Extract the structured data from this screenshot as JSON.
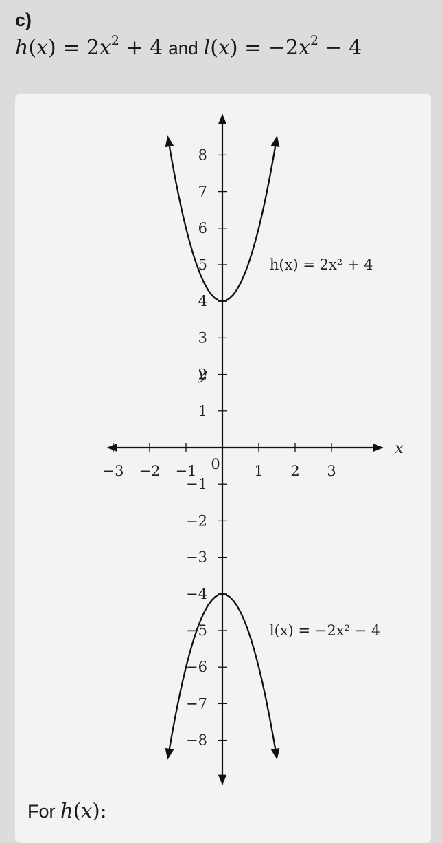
{
  "part_label": "c)",
  "heading": {
    "h_def": [
      "h",
      "(",
      "x",
      ") = 2",
      "x",
      "2",
      " + 4"
    ],
    "connector": "and",
    "l_def": [
      "l",
      "(",
      "x",
      ") = −2",
      "x",
      "2",
      " − 4"
    ]
  },
  "chart_data": {
    "type": "line",
    "xlabel": "x",
    "ylabel": "y",
    "xlim": [
      -3.0,
      4.4
    ],
    "ylim": [
      -9.2,
      9.1
    ],
    "x_ticks": [
      -3,
      -2,
      -1,
      1,
      2,
      3
    ],
    "x_tick_labels": [
      "−3",
      "−2",
      "−1",
      "1",
      "2",
      "3"
    ],
    "y_ticks": [
      8,
      7,
      6,
      5,
      4,
      3,
      2,
      1,
      -1,
      -2,
      -3,
      -4,
      -5,
      -6,
      -7,
      -8
    ],
    "y_tick_labels": [
      "8",
      "7",
      "6",
      "5",
      "4",
      "3",
      "2",
      "1",
      "−1",
      "−2",
      "−3",
      "−4",
      "−5",
      "−6",
      "−7",
      "−8"
    ],
    "origin_label": "0",
    "series": [
      {
        "name": "h(x) = 2x² + 4",
        "label_at": [
          1.3,
          5
        ],
        "x": [
          -1.5,
          -1.4,
          -1.3,
          -1.2,
          -1.1,
          -1.0,
          -0.9,
          -0.8,
          -0.7,
          -0.6,
          -0.5,
          -0.4,
          -0.3,
          -0.2,
          -0.1,
          0.0,
          0.1,
          0.2,
          0.3,
          0.4,
          0.5,
          0.6,
          0.7,
          0.8,
          0.9,
          1.0,
          1.1,
          1.2,
          1.3,
          1.4,
          1.5
        ],
        "y": [
          8.5,
          7.92,
          7.38,
          6.88,
          6.42,
          6.0,
          5.62,
          5.28,
          4.98,
          4.72,
          4.5,
          4.32,
          4.18,
          4.08,
          4.02,
          4.0,
          4.02,
          4.08,
          4.18,
          4.32,
          4.5,
          4.72,
          4.98,
          5.28,
          5.62,
          6.0,
          6.42,
          6.88,
          7.38,
          7.92,
          8.5
        ]
      },
      {
        "name": "l(x) = −2x² − 4",
        "label_at": [
          1.3,
          -5
        ],
        "x": [
          -1.5,
          -1.4,
          -1.3,
          -1.2,
          -1.1,
          -1.0,
          -0.9,
          -0.8,
          -0.7,
          -0.6,
          -0.5,
          -0.4,
          -0.3,
          -0.2,
          -0.1,
          0.0,
          0.1,
          0.2,
          0.3,
          0.4,
          0.5,
          0.6,
          0.7,
          0.8,
          0.9,
          1.0,
          1.1,
          1.2,
          1.3,
          1.4,
          1.5
        ],
        "y": [
          -8.5,
          -7.92,
          -7.38,
          -6.88,
          -6.42,
          -6.0,
          -5.62,
          -5.28,
          -4.98,
          -4.72,
          -4.5,
          -4.32,
          -4.18,
          -4.08,
          -4.02,
          -4.0,
          -4.02,
          -4.08,
          -4.18,
          -4.32,
          -4.5,
          -4.72,
          -4.98,
          -5.28,
          -5.62,
          -6.0,
          -6.42,
          -6.88,
          -7.38,
          -7.92,
          -8.5
        ]
      }
    ]
  },
  "footer": {
    "lead": "For",
    "fn": [
      "h",
      "(",
      "x",
      "):"
    ]
  }
}
